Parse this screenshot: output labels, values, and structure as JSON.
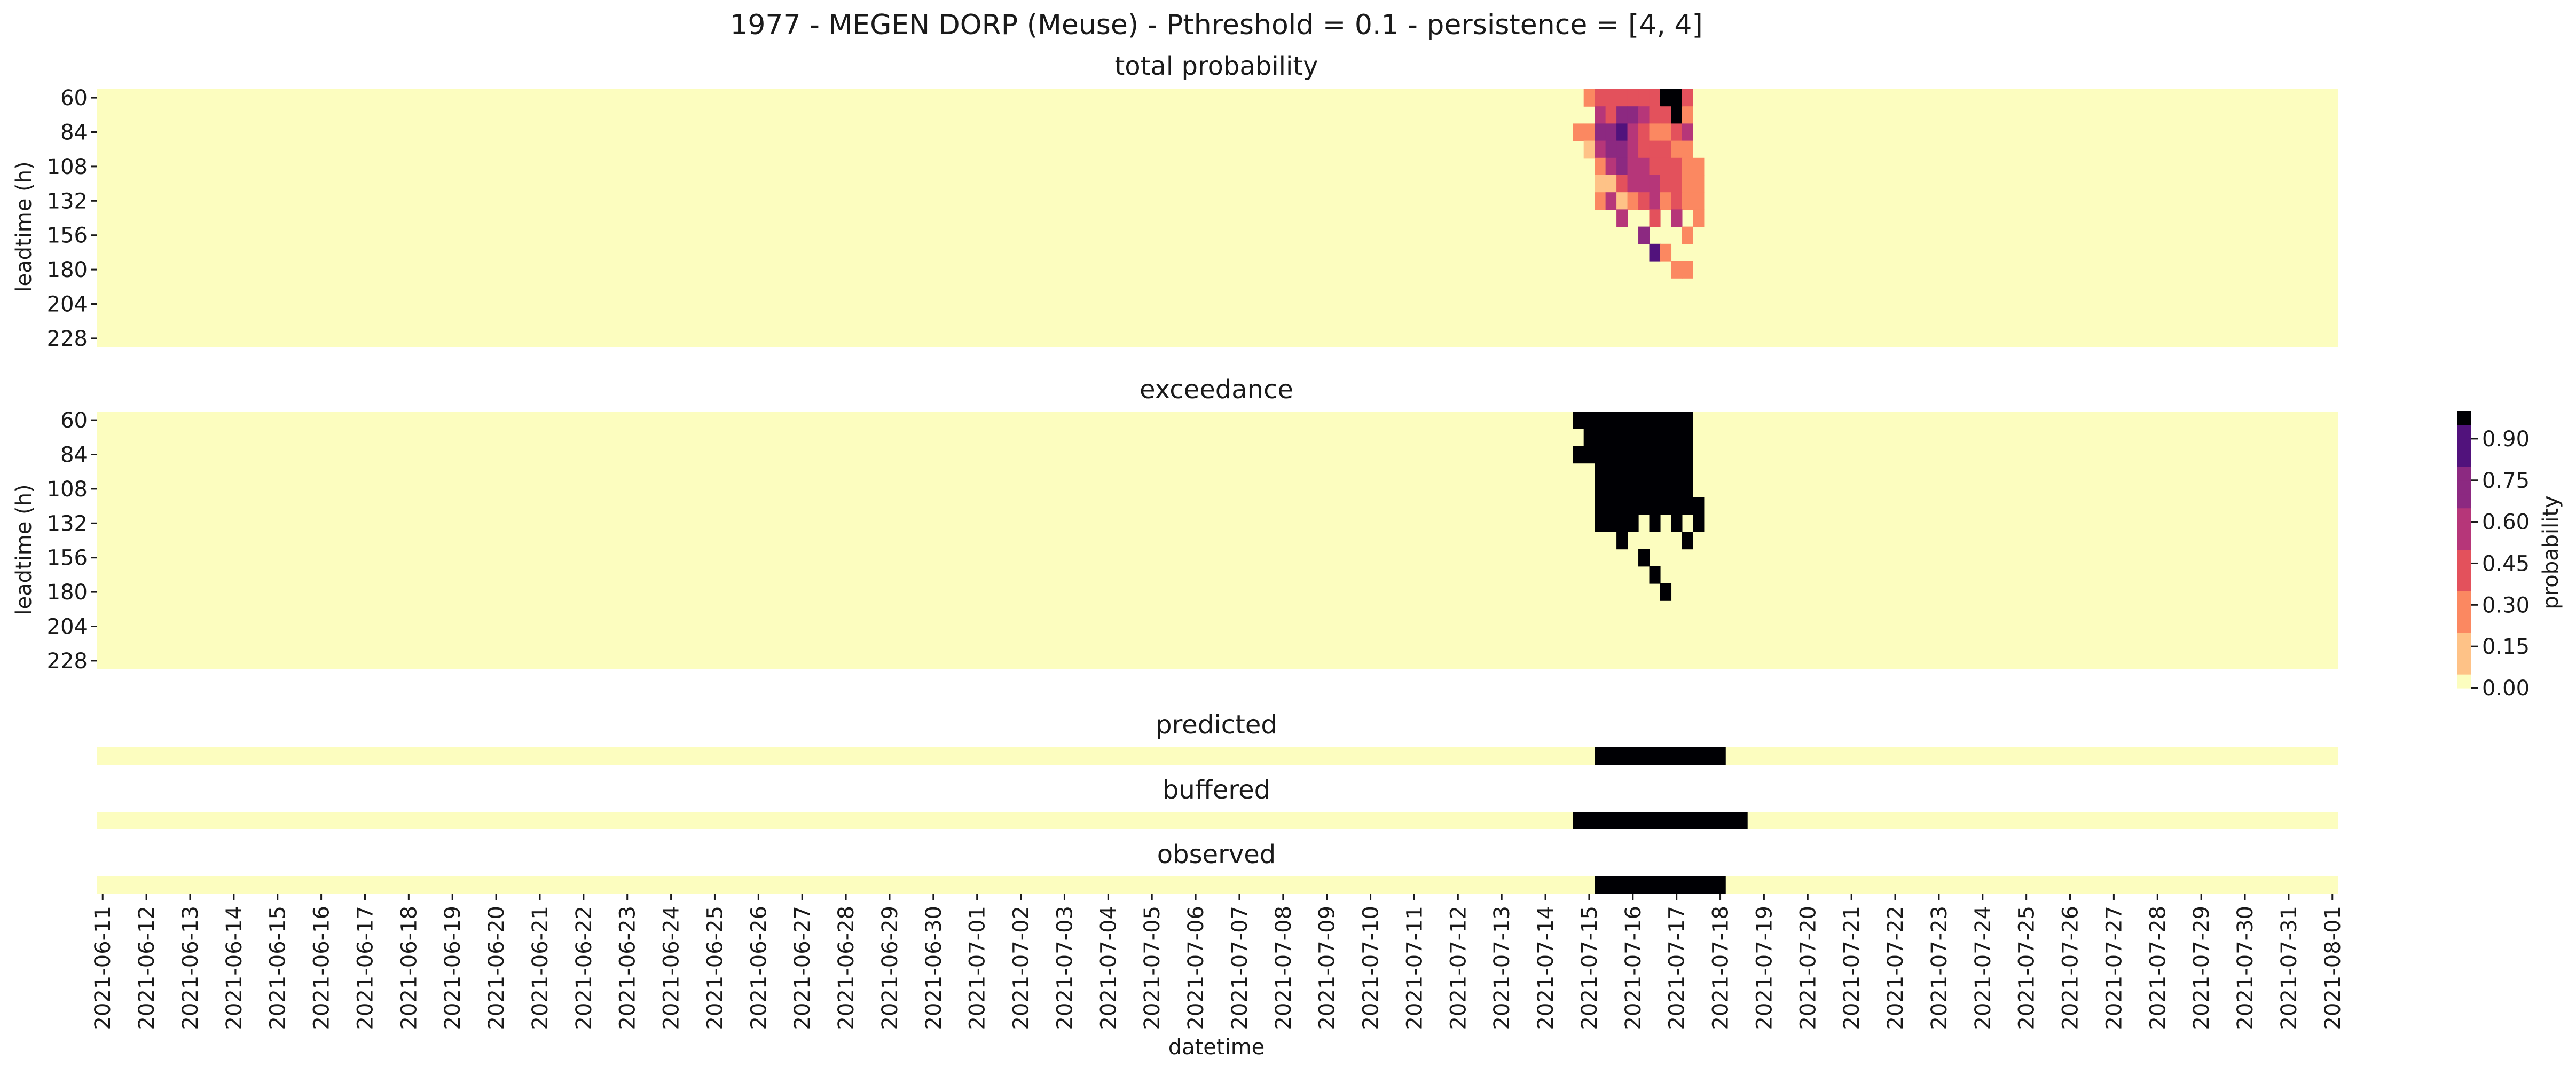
{
  "title": "1977 - MEGEN DORP (Meuse) - Pthreshold = 0.1 - persistence = [4, 4]",
  "colors": {
    "scale": [
      "#fcfdbf",
      "#fec287",
      "#fb8861",
      "#e3515c",
      "#b63679",
      "#8c2981",
      "#51127c",
      "#000004"
    ],
    "background": "#fcfdbf",
    "event": "#000004"
  },
  "chart_data": [
    {
      "type": "heatmap",
      "title": "total probability",
      "ylabel": "leadtime (h)",
      "y_ticks": [
        "60",
        "84",
        "108",
        "132",
        "156",
        "180",
        "204",
        "228"
      ],
      "leadtime_range_h": [
        60,
        240
      ],
      "leadtime_step_h": 12,
      "dates_start": "2021-06-11",
      "dates_end": "2021-08-01",
      "step_h": 6,
      "cells": [
        {
          "x": "2021-07-15 00:00",
          "y": 60,
          "value": 0.35
        },
        {
          "x": "2021-07-15 06:00",
          "y": 60,
          "value": 0.4
        },
        {
          "x": "2021-07-15 12:00",
          "y": 60,
          "value": 0.4
        },
        {
          "x": "2021-07-15 18:00",
          "y": 60,
          "value": 0.45
        },
        {
          "x": "2021-07-16 00:00",
          "y": 60,
          "value": 0.45
        },
        {
          "x": "2021-07-16 06:00",
          "y": 60,
          "value": 0.4
        },
        {
          "x": "2021-07-16 12:00",
          "y": 60,
          "value": 0.4
        },
        {
          "x": "2021-07-16 18:00",
          "y": 60,
          "value": 1.0
        },
        {
          "x": "2021-07-17 00:00",
          "y": 60,
          "value": 1.0
        },
        {
          "x": "2021-07-17 06:00",
          "y": 60,
          "value": 0.4
        },
        {
          "x": "2021-07-15 06:00",
          "y": 72,
          "value": 0.55
        },
        {
          "x": "2021-07-15 12:00",
          "y": 72,
          "value": 0.4
        },
        {
          "x": "2021-07-15 18:00",
          "y": 72,
          "value": 0.7
        },
        {
          "x": "2021-07-16 00:00",
          "y": 72,
          "value": 0.75
        },
        {
          "x": "2021-07-16 06:00",
          "y": 72,
          "value": 0.55
        },
        {
          "x": "2021-07-16 12:00",
          "y": 72,
          "value": 0.4
        },
        {
          "x": "2021-07-16 18:00",
          "y": 72,
          "value": 0.45
        },
        {
          "x": "2021-07-17 00:00",
          "y": 72,
          "value": 1.0
        },
        {
          "x": "2021-07-17 06:00",
          "y": 72,
          "value": 0.35
        },
        {
          "x": "2021-07-14 18:00",
          "y": 84,
          "value": 0.35
        },
        {
          "x": "2021-07-15 00:00",
          "y": 84,
          "value": 0.25
        },
        {
          "x": "2021-07-15 06:00",
          "y": 84,
          "value": 0.65
        },
        {
          "x": "2021-07-15 12:00",
          "y": 84,
          "value": 0.7
        },
        {
          "x": "2021-07-15 18:00",
          "y": 84,
          "value": 0.9
        },
        {
          "x": "2021-07-16 00:00",
          "y": 84,
          "value": 0.6
        },
        {
          "x": "2021-07-16 06:00",
          "y": 84,
          "value": 0.4
        },
        {
          "x": "2021-07-16 12:00",
          "y": 84,
          "value": 0.35
        },
        {
          "x": "2021-07-16 18:00",
          "y": 84,
          "value": 0.35
        },
        {
          "x": "2021-07-17 00:00",
          "y": 84,
          "value": 0.4
        },
        {
          "x": "2021-07-17 06:00",
          "y": 84,
          "value": 0.6
        },
        {
          "x": "2021-07-15 00:00",
          "y": 96,
          "value": 0.2
        },
        {
          "x": "2021-07-15 06:00",
          "y": 96,
          "value": 0.55
        },
        {
          "x": "2021-07-15 12:00",
          "y": 96,
          "value": 0.65
        },
        {
          "x": "2021-07-15 18:00",
          "y": 96,
          "value": 0.65
        },
        {
          "x": "2021-07-16 00:00",
          "y": 96,
          "value": 0.6
        },
        {
          "x": "2021-07-16 06:00",
          "y": 96,
          "value": 0.4
        },
        {
          "x": "2021-07-16 12:00",
          "y": 96,
          "value": 0.4
        },
        {
          "x": "2021-07-16 18:00",
          "y": 96,
          "value": 0.4
        },
        {
          "x": "2021-07-17 00:00",
          "y": 96,
          "value": 0.35
        },
        {
          "x": "2021-07-17 06:00",
          "y": 96,
          "value": 0.35
        },
        {
          "x": "2021-07-15 06:00",
          "y": 108,
          "value": 0.35
        },
        {
          "x": "2021-07-15 12:00",
          "y": 108,
          "value": 0.55
        },
        {
          "x": "2021-07-15 18:00",
          "y": 108,
          "value": 0.65
        },
        {
          "x": "2021-07-16 00:00",
          "y": 108,
          "value": 0.6
        },
        {
          "x": "2021-07-16 06:00",
          "y": 108,
          "value": 0.55
        },
        {
          "x": "2021-07-16 12:00",
          "y": 108,
          "value": 0.4
        },
        {
          "x": "2021-07-16 18:00",
          "y": 108,
          "value": 0.4
        },
        {
          "x": "2021-07-17 00:00",
          "y": 108,
          "value": 0.4
        },
        {
          "x": "2021-07-17 06:00",
          "y": 108,
          "value": 0.35
        },
        {
          "x": "2021-07-17 12:00",
          "y": 108,
          "value": 0.3
        },
        {
          "x": "2021-07-15 06:00",
          "y": 120,
          "value": 0.15
        },
        {
          "x": "2021-07-15 12:00",
          "y": 120,
          "value": 0.15
        },
        {
          "x": "2021-07-15 18:00",
          "y": 120,
          "value": 0.4
        },
        {
          "x": "2021-07-16 00:00",
          "y": 120,
          "value": 0.55
        },
        {
          "x": "2021-07-16 06:00",
          "y": 120,
          "value": 0.6
        },
        {
          "x": "2021-07-16 12:00",
          "y": 120,
          "value": 0.55
        },
        {
          "x": "2021-07-16 18:00",
          "y": 120,
          "value": 0.45
        },
        {
          "x": "2021-07-17 00:00",
          "y": 120,
          "value": 0.4
        },
        {
          "x": "2021-07-17 06:00",
          "y": 120,
          "value": 0.35
        },
        {
          "x": "2021-07-17 12:00",
          "y": 120,
          "value": 0.35
        },
        {
          "x": "2021-07-15 06:00",
          "y": 132,
          "value": 0.25
        },
        {
          "x": "2021-07-15 12:00",
          "y": 132,
          "value": 0.55
        },
        {
          "x": "2021-07-15 18:00",
          "y": 132,
          "value": 0.2
        },
        {
          "x": "2021-07-16 00:00",
          "y": 132,
          "value": 0.25
        },
        {
          "x": "2021-07-16 06:00",
          "y": 132,
          "value": 0.4
        },
        {
          "x": "2021-07-16 12:00",
          "y": 132,
          "value": 0.6
        },
        {
          "x": "2021-07-16 18:00",
          "y": 132,
          "value": 0.25
        },
        {
          "x": "2021-07-17 00:00",
          "y": 132,
          "value": 0.4
        },
        {
          "x": "2021-07-17 06:00",
          "y": 132,
          "value": 0.35
        },
        {
          "x": "2021-07-17 12:00",
          "y": 132,
          "value": 0.25
        },
        {
          "x": "2021-07-15 18:00",
          "y": 144,
          "value": 0.55
        },
        {
          "x": "2021-07-16 12:00",
          "y": 144,
          "value": 0.4
        },
        {
          "x": "2021-07-17 00:00",
          "y": 144,
          "value": 0.55
        },
        {
          "x": "2021-07-17 12:00",
          "y": 144,
          "value": 0.35
        },
        {
          "x": "2021-07-16 06:00",
          "y": 156,
          "value": 0.7
        },
        {
          "x": "2021-07-17 06:00",
          "y": 156,
          "value": 0.35
        },
        {
          "x": "2021-07-16 12:00",
          "y": 168,
          "value": 0.8
        },
        {
          "x": "2021-07-16 18:00",
          "y": 168,
          "value": 0.35
        },
        {
          "x": "2021-07-17 00:00",
          "y": 180,
          "value": 0.35
        },
        {
          "x": "2021-07-17 06:00",
          "y": 180,
          "value": 0.35
        }
      ]
    },
    {
      "type": "heatmap",
      "title": "exceedance",
      "ylabel": "leadtime (h)",
      "y_ticks": [
        "60",
        "84",
        "108",
        "132",
        "156",
        "180",
        "204",
        "228"
      ],
      "leadtime_range_h": [
        60,
        240
      ],
      "leadtime_step_h": 12,
      "dates_start": "2021-06-11",
      "dates_end": "2021-08-01",
      "step_h": 6,
      "exceeded": [
        {
          "y": 60,
          "from": "2021-07-14 18:00",
          "to": "2021-07-17 06:00"
        },
        {
          "y": 72,
          "from": "2021-07-15 00:00",
          "to": "2021-07-17 06:00"
        },
        {
          "y": 84,
          "from": "2021-07-14 18:00",
          "to": "2021-07-17 06:00"
        },
        {
          "y": 96,
          "from": "2021-07-15 06:00",
          "to": "2021-07-17 06:00"
        },
        {
          "y": 108,
          "from": "2021-07-15 06:00",
          "to": "2021-07-17 06:00"
        },
        {
          "y": 120,
          "from": "2021-07-15 06:00",
          "to": "2021-07-17 12:00"
        },
        {
          "y": 132,
          "from": "2021-07-15 06:00",
          "to": "2021-07-15 12:00"
        },
        {
          "y": 132,
          "from": "2021-07-15 18:00",
          "to": "2021-07-16 00:00"
        },
        {
          "y": 132,
          "from": "2021-07-16 12:00",
          "to": "2021-07-16 12:00"
        },
        {
          "y": 132,
          "from": "2021-07-17 00:00",
          "to": "2021-07-17 00:00"
        },
        {
          "y": 132,
          "from": "2021-07-17 12:00",
          "to": "2021-07-17 12:00"
        },
        {
          "y": 144,
          "from": "2021-07-15 18:00",
          "to": "2021-07-15 18:00"
        },
        {
          "y": 144,
          "from": "2021-07-17 06:00",
          "to": "2021-07-17 06:00"
        },
        {
          "y": 156,
          "from": "2021-07-16 06:00",
          "to": "2021-07-16 06:00"
        },
        {
          "y": 168,
          "from": "2021-07-16 12:00",
          "to": "2021-07-16 12:00"
        },
        {
          "y": 180,
          "from": "2021-07-16 18:00",
          "to": "2021-07-16 18:00"
        }
      ]
    },
    {
      "type": "heatmap",
      "title": "predicted",
      "dates_start": "2021-06-11",
      "dates_end": "2021-08-01",
      "events": [
        {
          "from": "2021-07-15 06:00",
          "to": "2021-07-18 00:00"
        }
      ]
    },
    {
      "type": "heatmap",
      "title": "buffered",
      "dates_start": "2021-06-11",
      "dates_end": "2021-08-01",
      "events": [
        {
          "from": "2021-07-14 18:00",
          "to": "2021-07-18 12:00"
        }
      ]
    },
    {
      "type": "heatmap",
      "title": "observed",
      "dates_start": "2021-06-11",
      "dates_end": "2021-08-01",
      "events": [
        {
          "from": "2021-07-15 06:00",
          "to": "2021-07-18 00:00"
        }
      ]
    }
  ],
  "x_axis": {
    "label": "datetime",
    "tick_labels": [
      "2021-06-11",
      "2021-06-12",
      "2021-06-13",
      "2021-06-14",
      "2021-06-15",
      "2021-06-16",
      "2021-06-17",
      "2021-06-18",
      "2021-06-19",
      "2021-06-20",
      "2021-06-21",
      "2021-06-22",
      "2021-06-23",
      "2021-06-24",
      "2021-06-25",
      "2021-06-26",
      "2021-06-27",
      "2021-06-28",
      "2021-06-29",
      "2021-06-30",
      "2021-07-01",
      "2021-07-02",
      "2021-07-03",
      "2021-07-04",
      "2021-07-05",
      "2021-07-06",
      "2021-07-07",
      "2021-07-08",
      "2021-07-09",
      "2021-07-10",
      "2021-07-11",
      "2021-07-12",
      "2021-07-13",
      "2021-07-14",
      "2021-07-15",
      "2021-07-16",
      "2021-07-17",
      "2021-07-18",
      "2021-07-19",
      "2021-07-20",
      "2021-07-21",
      "2021-07-22",
      "2021-07-23",
      "2021-07-24",
      "2021-07-25",
      "2021-07-26",
      "2021-07-27",
      "2021-07-28",
      "2021-07-29",
      "2021-07-30",
      "2021-07-31",
      "2021-08-01"
    ]
  },
  "colorbar": {
    "label": "probability",
    "range": [
      0,
      1
    ],
    "ticks": [
      "0.00",
      "0.15",
      "0.30",
      "0.45",
      "0.60",
      "0.75",
      "0.90"
    ]
  }
}
